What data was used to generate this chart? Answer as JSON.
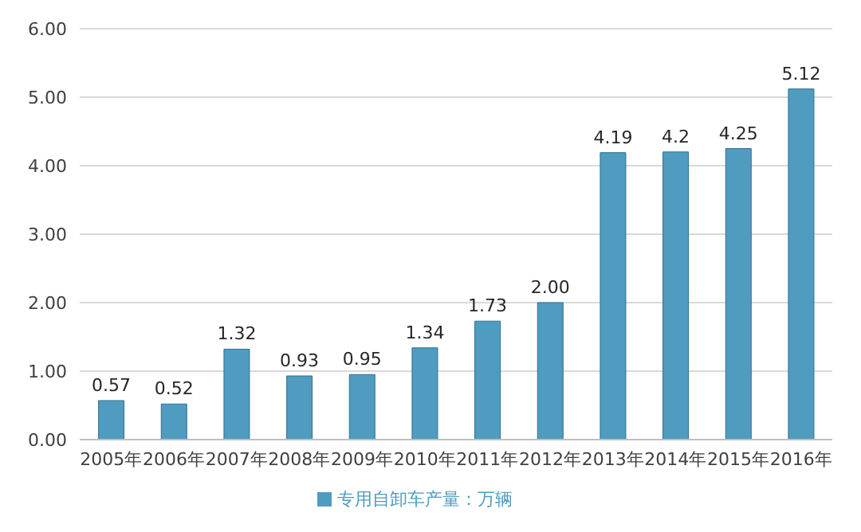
{
  "chart_data": {
    "type": "bar",
    "categories": [
      "2005年",
      "2006年",
      "2007年",
      "2008年",
      "2009年",
      "2010年",
      "2011年",
      "2012年",
      "2013年",
      "2014年",
      "2015年",
      "2016年"
    ],
    "series": [
      {
        "name": "专用自卸车产量：万辆",
        "color": "#4f9cc0",
        "values": [
          0.57,
          0.52,
          1.32,
          0.93,
          0.95,
          1.34,
          1.73,
          2.0,
          4.19,
          4.2,
          4.25,
          5.12
        ],
        "value_labels": [
          "0.57",
          "0.52",
          "1.32",
          "0.93",
          "0.95",
          "1.34",
          "1.73",
          "2.00",
          "4.19",
          "4.2",
          "4.25",
          "5.12"
        ]
      }
    ],
    "ylim": [
      0,
      6
    ],
    "yticks": [
      {
        "value": 0,
        "label": "0.00"
      },
      {
        "value": 1,
        "label": "1.00"
      },
      {
        "value": 2,
        "label": "2.00"
      },
      {
        "value": 3,
        "label": "3.00"
      },
      {
        "value": 4,
        "label": "4.00"
      },
      {
        "value": 5,
        "label": "5.00"
      },
      {
        "value": 6,
        "label": "6.00"
      }
    ],
    "grid": "y",
    "legend": "bottom"
  }
}
